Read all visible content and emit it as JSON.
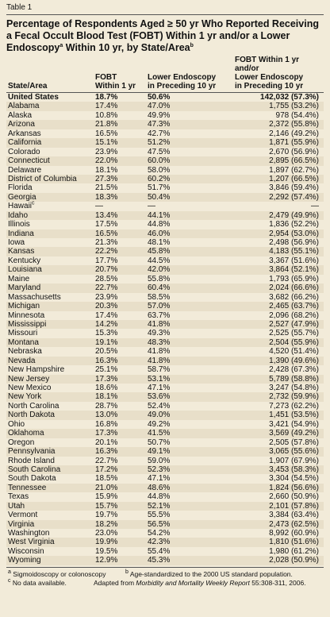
{
  "header": {
    "label": "Table 1",
    "title": {
      "text_1": "Percentage of Respondents Aged ≥ 50 yr Who Reported Receiving a Fecal Occult Blood Test (FOBT) Within 1 yr and/or a Lower Endoscopy",
      "sup_1": "a",
      "text_2": " Within 10 yr, by State/Area",
      "sup_2": "b"
    }
  },
  "table": {
    "columns": [
      [
        "State/Area"
      ],
      [
        "FOBT",
        "Within 1 yr"
      ],
      [
        "Lower Endoscopy",
        "in Preceding 10 yr"
      ],
      [
        "FOBT Within 1 yr and/or",
        "Lower Endoscopy",
        "in Preceding 10 yr"
      ]
    ],
    "rows": [
      [
        "United States",
        "18.7%",
        "50.6%",
        "142,032 (57.3%)"
      ],
      [
        "Alabama",
        "17.4%",
        "47.0%",
        "1,755 (53.2%)"
      ],
      [
        "Alaska",
        "10.8%",
        "49.9%",
        "978 (54.4%)"
      ],
      [
        "Arizona",
        "21.8%",
        "47.3%",
        "2,372 (55.8%)"
      ],
      [
        "Arkansas",
        "16.5%",
        "42.7%",
        "2,146 (49.2%)"
      ],
      [
        "California",
        "15.1%",
        "51.2%",
        "1,871 (55.9%)"
      ],
      [
        "Colorado",
        "23.9%",
        "47.5%",
        "2,670 (56.9%)"
      ],
      [
        "Connecticut",
        "22.0%",
        "60.0%",
        "2,895 (66.5%)"
      ],
      [
        "Delaware",
        "18.1%",
        "58.0%",
        "1,897 (62.7%)"
      ],
      [
        "District of Columbia",
        "27.3%",
        "60.2%",
        "1,207 (66.5%)"
      ],
      [
        "Florida",
        "21.5%",
        "51.7%",
        "3,846 (59.4%)"
      ],
      [
        "Georgia",
        "18.3%",
        "50.4%",
        "2,292 (57.4%)"
      ],
      [
        {
          "text": "Hawaii",
          "sup": "c"
        },
        "—",
        "—",
        "—"
      ],
      [
        "Idaho",
        "13.4%",
        "44.1%",
        "2,479 (49.9%)"
      ],
      [
        "Illinois",
        "17.5%",
        "44.8%",
        "1,836 (52.2%)"
      ],
      [
        "Indiana",
        "16.5%",
        "46.0%",
        "2,954 (53.0%)"
      ],
      [
        "Iowa",
        "21.3%",
        "48.1%",
        "2,498 (56.9%)"
      ],
      [
        "Kansas",
        "22.2%",
        "45.8%",
        "4,183 (55.1%)"
      ],
      [
        "Kentucky",
        "17.7%",
        "44.5%",
        "3,367 (51.6%)"
      ],
      [
        "Louisiana",
        "20.7%",
        "42.0%",
        "3,864 (52.1%)"
      ],
      [
        "Maine",
        "28.5%",
        "55.8%",
        "1,793 (65.9%)"
      ],
      [
        "Maryland",
        "22.7%",
        "60.4%",
        "2,024 (66.6%)"
      ],
      [
        "Massachusetts",
        "23.9%",
        "58.5%",
        "3,682 (66.2%)"
      ],
      [
        "Michigan",
        "20.3%",
        "57.0%",
        "2,465 (63.7%)"
      ],
      [
        "Minnesota",
        "17.4%",
        "63.7%",
        "2,096 (68.2%)"
      ],
      [
        "Mississippi",
        "14.2%",
        "41.8%",
        "2,527 (47.9%)"
      ],
      [
        "Missouri",
        "15.3%",
        "49.3%",
        "2,525 (55.7%)"
      ],
      [
        "Montana",
        "19.1%",
        "48.3%",
        "2,504 (55.9%)"
      ],
      [
        "Nebraska",
        "20.5%",
        "41.8%",
        "4,520 (51.4%)"
      ],
      [
        "Nevada",
        "16.3%",
        "41.8%",
        "1,390 (49.6%)"
      ],
      [
        "New Hampshire",
        "25.1%",
        "58.7%",
        "2,428 (67.3%)"
      ],
      [
        "New Jersey",
        "17.3%",
        "53.1%",
        "5,789 (58.8%)"
      ],
      [
        "New Mexico",
        "18.6%",
        "47.1%",
        "3,247 (54.8%)"
      ],
      [
        "New York",
        "18.1%",
        "53.6%",
        "2,732 (59.9%)"
      ],
      [
        "North Carolina",
        "28.7%",
        "52.4%",
        "7,273 (62.2%)"
      ],
      [
        "North Dakota",
        "13.0%",
        "49.0%",
        "1,451 (53.5%)"
      ],
      [
        "Ohio",
        "16.8%",
        "49.2%",
        "3,421 (54.9%)"
      ],
      [
        "Oklahoma",
        "17.3%",
        "41.5%",
        "3,569 (49.2%)"
      ],
      [
        "Oregon",
        "20.1%",
        "50.7%",
        "2,505 (57.8%)"
      ],
      [
        "Pennsylvania",
        "16.3%",
        "49.1%",
        "3,065 (55.6%)"
      ],
      [
        "Rhode Island",
        "22.7%",
        "59.0%",
        "1,907 (67.9%)"
      ],
      [
        "South Carolina",
        "17.2%",
        "52.3%",
        "3,453 (58.3%)"
      ],
      [
        "South Dakota",
        "18.5%",
        "47.1%",
        "3,304 (54.5%)"
      ],
      [
        "Tennessee",
        "21.0%",
        "48.6%",
        "1,824 (56.6%)"
      ],
      [
        "Texas",
        "15.9%",
        "44.8%",
        "2,660 (50.9%)"
      ],
      [
        "Utah",
        "15.7%",
        "52.1%",
        "2,101 (57.8%)"
      ],
      [
        "Vermont",
        "19.7%",
        "55.5%",
        "3,384 (63.4%)"
      ],
      [
        "Virginia",
        "18.2%",
        "56.5%",
        "2,473 (62.5%)"
      ],
      [
        "Washington",
        "23.0%",
        "54.2%",
        "8,992 (60.9%)"
      ],
      [
        "West Virginia",
        "19.9%",
        "42.3%",
        "1,810 (51.6%)"
      ],
      [
        "Wisconsin",
        "19.5%",
        "55.4%",
        "1,980 (61.2%)"
      ],
      [
        "Wyoming",
        "12.9%",
        "45.3%",
        "2,028 (50.9%)"
      ]
    ]
  },
  "footnotes": {
    "notes": [
      {
        "mark": "a",
        "text": "Sigmoidoscopy or colonoscopy"
      },
      {
        "mark": "b",
        "text": "Age-standardized to the 2000 US standard population."
      },
      {
        "mark": "c",
        "text": "No data available."
      }
    ],
    "source": {
      "prefix": "Adapted from ",
      "journal": "Morbidity and Mortality Weekly Report",
      "suffix": " 55:308-311, 2006."
    }
  }
}
